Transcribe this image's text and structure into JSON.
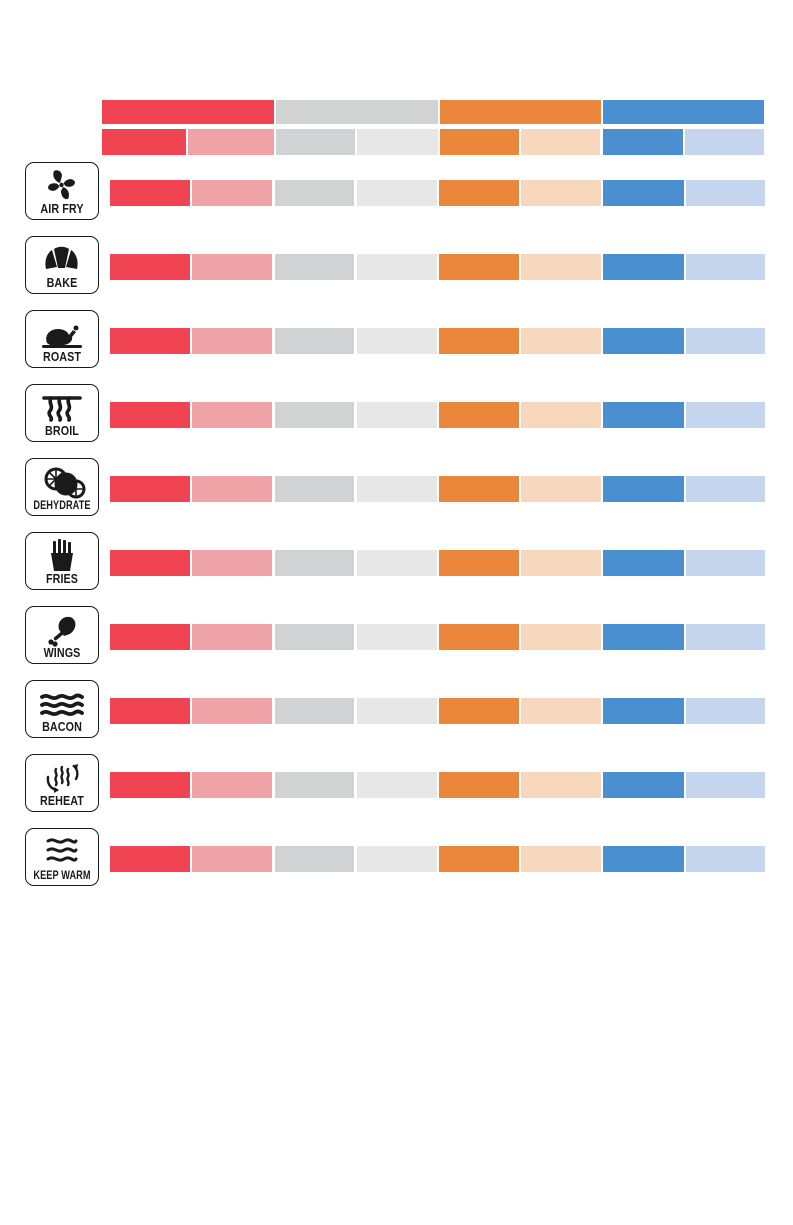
{
  "colors": {
    "red": "#f04452",
    "red_light": "#f0a3a7",
    "gray": "#d1d2d4",
    "gray_light": "#e7e7e8",
    "orange": "#ea873b",
    "orange_light": "#f7d8be",
    "blue": "#4a8fcf",
    "blue_light": "#c5d5ee"
  },
  "header_groups": [
    {
      "color": "red"
    },
    {
      "color": "gray"
    },
    {
      "color": "orange"
    },
    {
      "color": "blue"
    }
  ],
  "header_cells": [
    "red",
    "red_light",
    "gray",
    "gray_light",
    "orange",
    "orange_light",
    "blue",
    "blue_light"
  ],
  "modes": [
    {
      "label": "AIR FRY",
      "icon": "fan-icon"
    },
    {
      "label": "BAKE",
      "icon": "croissant-icon"
    },
    {
      "label": "ROAST",
      "icon": "roast-chicken-icon"
    },
    {
      "label": "BROIL",
      "icon": "broil-element-icon"
    },
    {
      "label": "DEHYDRATE",
      "icon": "citrus-slices-icon"
    },
    {
      "label": "FRIES",
      "icon": "fries-icon"
    },
    {
      "label": "WINGS",
      "icon": "drumstick-icon"
    },
    {
      "label": "BACON",
      "icon": "bacon-icon"
    },
    {
      "label": "REHEAT",
      "icon": "reheat-icon"
    },
    {
      "label": "KEEP WARM",
      "icon": "keep-warm-icon"
    }
  ]
}
